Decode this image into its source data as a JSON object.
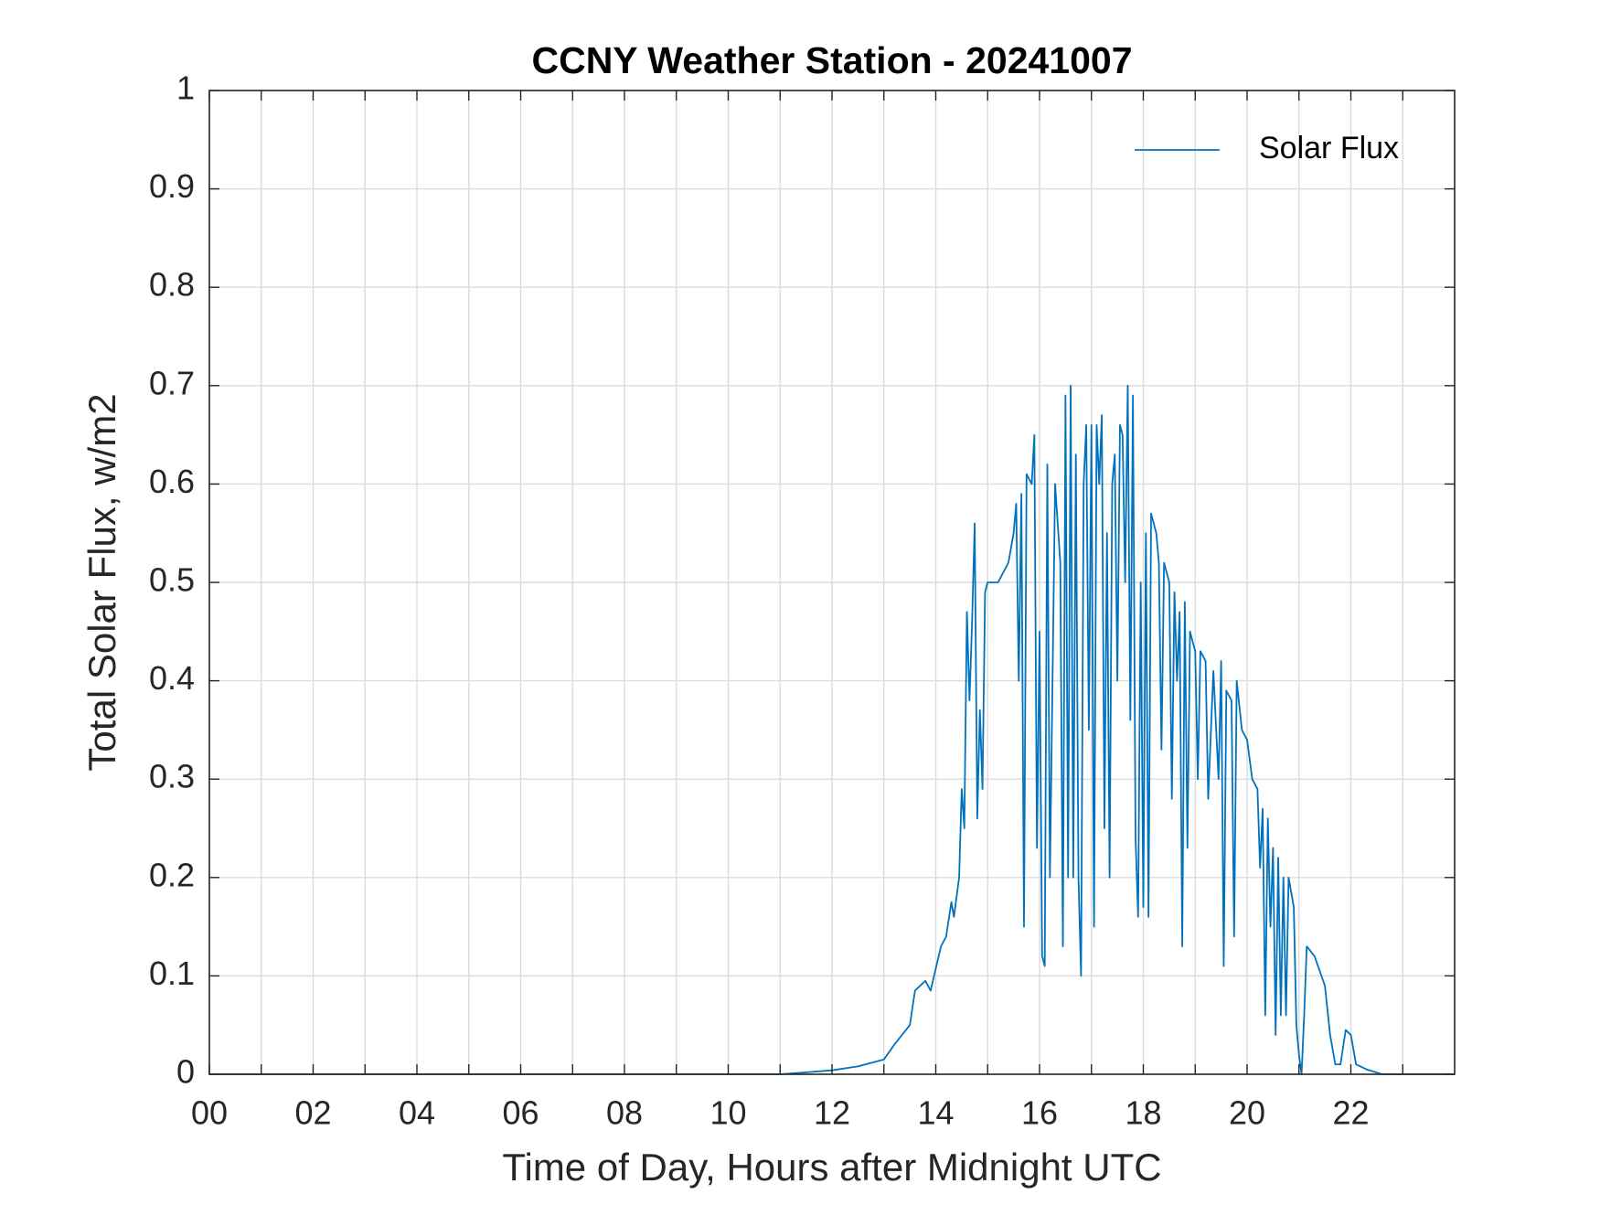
{
  "chart_data": {
    "type": "line",
    "title": "CCNY Weather Station - 20241007",
    "xlabel": "Time of Day, Hours after Midnight UTC",
    "ylabel": "Total Solar Flux, w/m2",
    "x": [
      0,
      11,
      12,
      12.5,
      13,
      13.2,
      13.5,
      13.6,
      13.8,
      13.9,
      14.1,
      14.2,
      14.3,
      14.35,
      14.45,
      14.5,
      14.55,
      14.6,
      14.65,
      14.7,
      14.75,
      14.8,
      14.85,
      14.9,
      14.95,
      15,
      15.2,
      15.4,
      15.5,
      15.55,
      15.6,
      15.65,
      15.7,
      15.75,
      15.85,
      15.9,
      15.95,
      16,
      16.05,
      16.1,
      16.15,
      16.2,
      16.3,
      16.4,
      16.45,
      16.5,
      16.55,
      16.6,
      16.65,
      16.7,
      16.75,
      16.8,
      16.85,
      16.9,
      16.95,
      17,
      17.05,
      17.1,
      17.15,
      17.2,
      17.25,
      17.3,
      17.35,
      17.4,
      17.45,
      17.5,
      17.55,
      17.6,
      17.65,
      17.7,
      17.75,
      17.8,
      17.85,
      17.9,
      17.95,
      18,
      18.05,
      18.1,
      18.15,
      18.25,
      18.3,
      18.35,
      18.4,
      18.5,
      18.55,
      18.6,
      18.65,
      18.7,
      18.75,
      18.8,
      18.85,
      18.9,
      19,
      19.05,
      19.1,
      19.2,
      19.25,
      19.35,
      19.45,
      19.5,
      19.55,
      19.6,
      19.7,
      19.75,
      19.8,
      19.9,
      20,
      20.1,
      20.2,
      20.25,
      20.3,
      20.35,
      20.4,
      20.45,
      20.5,
      20.55,
      20.6,
      20.65,
      20.7,
      20.75,
      20.8,
      20.9,
      20.95,
      21,
      21.05,
      21.1,
      21.15,
      21.3,
      21.5,
      21.6,
      21.7,
      21.8,
      21.9,
      22,
      22.1,
      22.3,
      22.6,
      24
    ],
    "series": [
      {
        "name": "Solar Flux",
        "color": "#0072bd",
        "values": [
          0,
          0,
          0.004,
          0.008,
          0.015,
          0.03,
          0.05,
          0.085,
          0.095,
          0.085,
          0.13,
          0.14,
          0.175,
          0.16,
          0.2,
          0.29,
          0.25,
          0.47,
          0.38,
          0.46,
          0.56,
          0.26,
          0.37,
          0.29,
          0.49,
          0.5,
          0.5,
          0.52,
          0.55,
          0.58,
          0.4,
          0.59,
          0.15,
          0.61,
          0.6,
          0.65,
          0.23,
          0.45,
          0.12,
          0.11,
          0.62,
          0.2,
          0.6,
          0.52,
          0.13,
          0.69,
          0.2,
          0.7,
          0.2,
          0.63,
          0.2,
          0.1,
          0.6,
          0.66,
          0.35,
          0.66,
          0.15,
          0.66,
          0.6,
          0.67,
          0.25,
          0.55,
          0.2,
          0.6,
          0.63,
          0.4,
          0.66,
          0.65,
          0.5,
          0.7,
          0.36,
          0.69,
          0.24,
          0.16,
          0.5,
          0.17,
          0.55,
          0.16,
          0.57,
          0.55,
          0.52,
          0.33,
          0.52,
          0.5,
          0.28,
          0.49,
          0.4,
          0.47,
          0.13,
          0.48,
          0.23,
          0.45,
          0.43,
          0.3,
          0.43,
          0.42,
          0.28,
          0.41,
          0.3,
          0.42,
          0.11,
          0.39,
          0.38,
          0.14,
          0.4,
          0.35,
          0.34,
          0.3,
          0.29,
          0.21,
          0.27,
          0.06,
          0.26,
          0.15,
          0.23,
          0.04,
          0.22,
          0.06,
          0.2,
          0.06,
          0.2,
          0.17,
          0.05,
          0.02,
          0,
          0.06,
          0.13,
          0.12,
          0.09,
          0.04,
          0.01,
          0.01,
          0.045,
          0.04,
          0.01,
          0.005,
          0,
          0
        ]
      }
    ],
    "xlim": [
      0,
      24
    ],
    "ylim": [
      0,
      1
    ],
    "xticks": [
      {
        "value": 0,
        "label": "00"
      },
      {
        "value": 2,
        "label": "02"
      },
      {
        "value": 4,
        "label": "04"
      },
      {
        "value": 6,
        "label": "06"
      },
      {
        "value": 8,
        "label": "08"
      },
      10,
      12,
      14,
      16,
      18,
      20,
      22
    ],
    "xminor": [
      1,
      3,
      5,
      7,
      9,
      11,
      13,
      15,
      17,
      19,
      21,
      23
    ],
    "yticks": [
      0,
      0.1,
      0.2,
      0.3,
      0.4,
      0.5,
      0.6,
      0.7,
      0.8,
      0.9,
      1
    ],
    "grid": true,
    "legend": "northeast"
  }
}
